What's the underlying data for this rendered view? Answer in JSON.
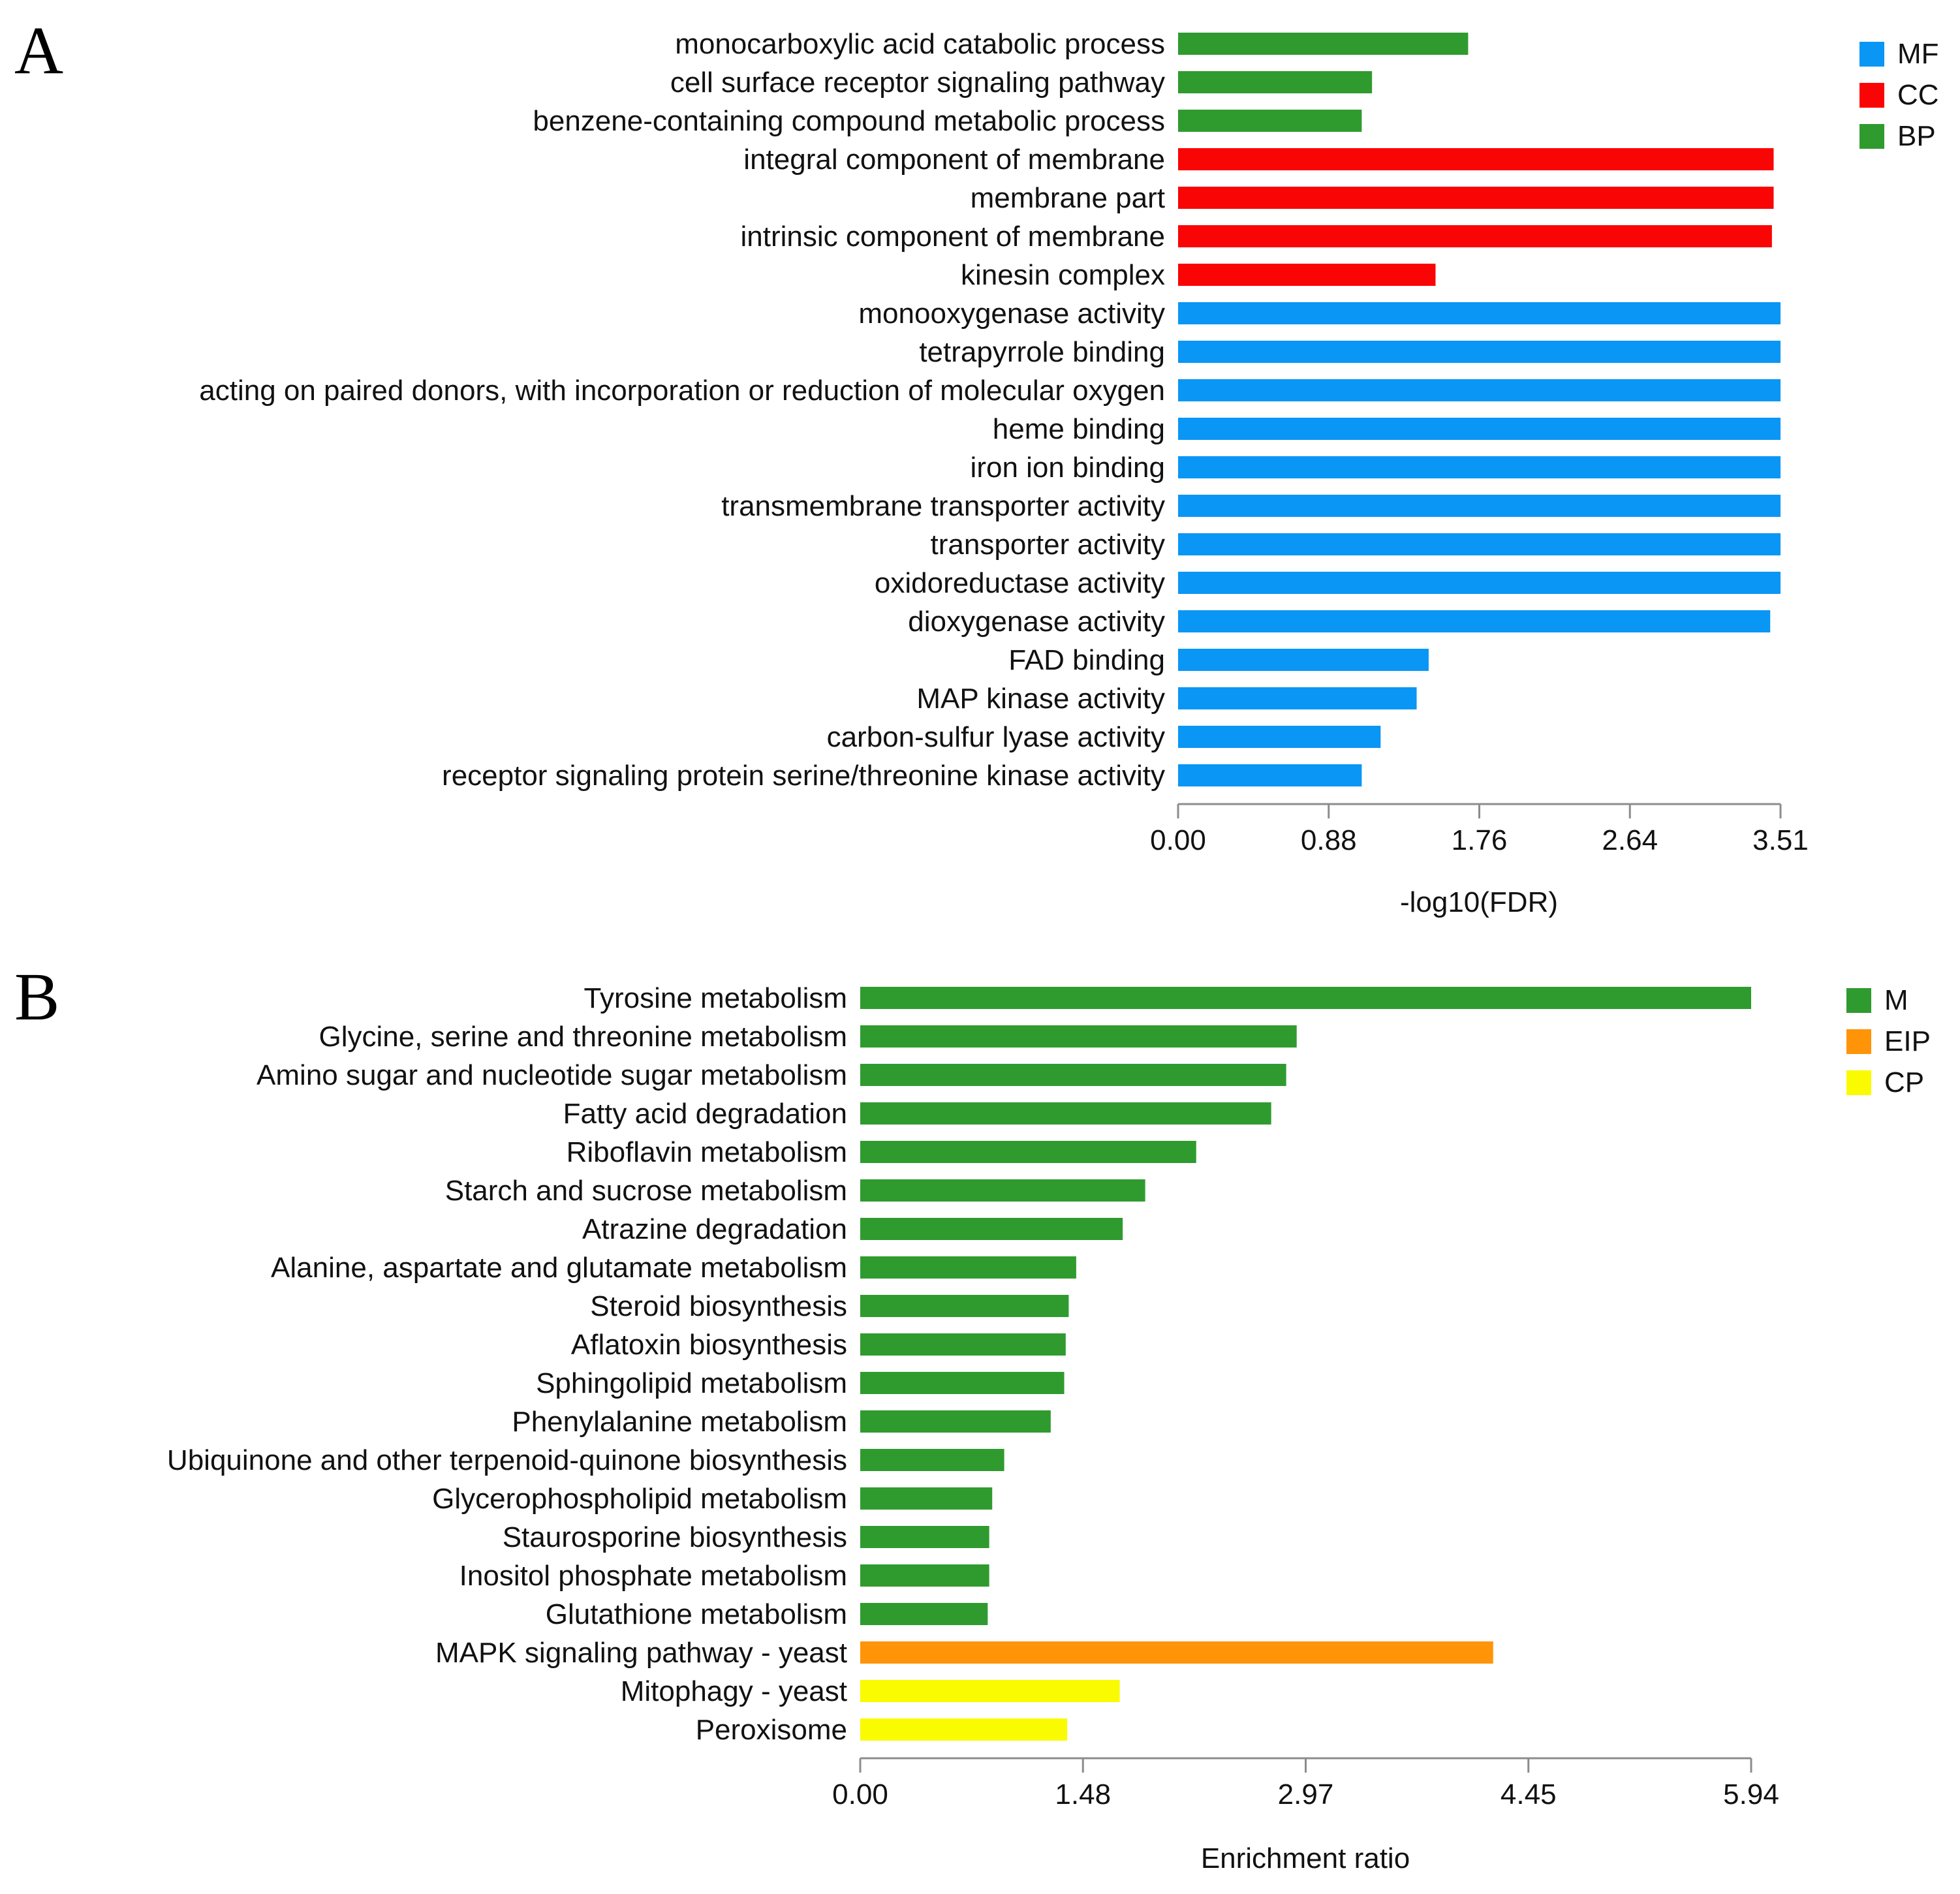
{
  "chart_data": [
    {
      "type": "bar",
      "orientation": "horizontal",
      "panel": "A",
      "xlabel": "-log10(FDR)",
      "ylabel": "",
      "xlim": [
        0,
        3.51
      ],
      "xticks": [
        "0.00",
        "0.88",
        "1.76",
        "2.64",
        "3.51"
      ],
      "legend": {
        "placement": "top-right",
        "items": [
          {
            "name": "MF",
            "color": "#0a96f5"
          },
          {
            "name": "CC",
            "color": "#fa0505"
          },
          {
            "name": "BP",
            "color": "#2f9b2f"
          }
        ]
      },
      "categories": [
        "monocarboxylic acid catabolic process",
        "cell surface receptor signaling pathway",
        "benzene-containing compound metabolic process",
        "integral component of membrane",
        "membrane part",
        "intrinsic component of membrane",
        "kinesin complex",
        "monooxygenase activity",
        "tetrapyrrole binding",
        "acting on paired donors, with incorporation or reduction of molecular oxygen",
        "heme binding",
        "iron ion binding",
        "transmembrane transporter activity",
        "transporter activity",
        "oxidoreductase activity",
        "dioxygenase activity",
        "FAD binding",
        "MAP kinase activity",
        "carbon-sulfur lyase activity",
        "receptor signaling protein serine/threonine kinase activity"
      ],
      "values": [
        1.69,
        1.13,
        1.07,
        3.47,
        3.47,
        3.46,
        1.5,
        3.51,
        3.51,
        3.51,
        3.51,
        3.51,
        3.51,
        3.51,
        3.51,
        3.45,
        1.46,
        1.39,
        1.18,
        1.07
      ],
      "groups": [
        "BP",
        "BP",
        "BP",
        "CC",
        "CC",
        "CC",
        "CC",
        "MF",
        "MF",
        "MF",
        "MF",
        "MF",
        "MF",
        "MF",
        "MF",
        "MF",
        "MF",
        "MF",
        "MF",
        "MF"
      ]
    },
    {
      "type": "bar",
      "orientation": "horizontal",
      "panel": "B",
      "xlabel": "Enrichment ratio",
      "ylabel": "",
      "xlim": [
        0,
        5.94
      ],
      "xticks": [
        "0.00",
        "1.48",
        "2.97",
        "4.45",
        "5.94"
      ],
      "legend": {
        "placement": "top-right",
        "items": [
          {
            "name": "M",
            "color": "#2f9b2f"
          },
          {
            "name": "EIP",
            "color": "#ff9408"
          },
          {
            "name": "CP",
            "color": "#fafa00"
          }
        ]
      },
      "categories": [
        "Tyrosine metabolism",
        "Glycine, serine and threonine metabolism",
        "Amino sugar and nucleotide sugar metabolism",
        "Fatty acid degradation",
        "Riboflavin metabolism",
        "Starch and sucrose metabolism",
        "Atrazine degradation",
        "Alanine, aspartate and glutamate metabolism",
        "Steroid biosynthesis",
        "Aflatoxin biosynthesis",
        "Sphingolipid metabolism",
        "Phenylalanine metabolism",
        "Ubiquinone and other terpenoid-quinone biosynthesis",
        "Glycerophospholipid metabolism",
        "Staurosporine biosynthesis",
        "Inositol phosphate metabolism",
        "Glutathione metabolism",
        "MAPK signaling pathway - yeast",
        "Mitophagy - yeast",
        "Peroxisome"
      ],
      "values": [
        5.94,
        2.91,
        2.84,
        2.74,
        2.24,
        1.9,
        1.75,
        1.44,
        1.39,
        1.37,
        1.36,
        1.27,
        0.96,
        0.88,
        0.86,
        0.86,
        0.85,
        4.22,
        1.73,
        1.38
      ],
      "groups": [
        "M",
        "M",
        "M",
        "M",
        "M",
        "M",
        "M",
        "M",
        "M",
        "M",
        "M",
        "M",
        "M",
        "M",
        "M",
        "M",
        "M",
        "EIP",
        "CP",
        "CP"
      ]
    }
  ]
}
